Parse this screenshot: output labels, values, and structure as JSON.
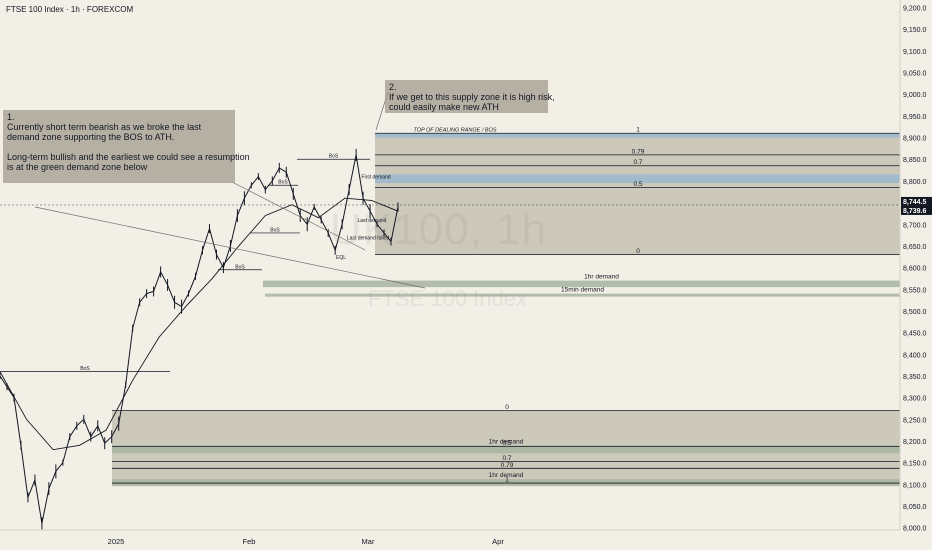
{
  "chart_title": "FTSE 100 Index · 1h · FOREXCOM",
  "watermark": {
    "symbol": "UK100, 1h",
    "name": "FTSE 100 Index"
  },
  "note1": {
    "number": "1.",
    "lines": [
      "Currently short term bearish as we broke the last",
      "demand zone supporting the BOS to ATH.",
      "",
      "Long-term bullish and the earliest we could see a resumption",
      "is at the green demand zone below"
    ]
  },
  "note2": {
    "number": "2.",
    "lines": [
      "If we get to this supply zone it is high risk,",
      "could easily make new ATH"
    ]
  },
  "price_labels": {
    "last": "8,744.5",
    "prev": "8,739.6",
    "last_color": "#131722"
  },
  "colors": {
    "fib_zone": "#b3ad9d",
    "demand_zone": "#a7b5a0",
    "blue_zone": "#9ab9cf",
    "candle": "#131722",
    "ema": "#131722"
  },
  "chart_data": {
    "type": "line",
    "x_ticks": [
      "2025",
      "Feb",
      "Mar",
      "Apr"
    ],
    "y_ticks": [
      "9,200.0",
      "9,150.0",
      "9,100.0",
      "9,050.0",
      "9,000.0",
      "8,950.0",
      "8,900.0",
      "8,850.0",
      "8,800.0",
      "8,750.0",
      "8,700.0",
      "8,650.0",
      "8,600.0",
      "8,550.0",
      "8,500.0",
      "8,450.0",
      "8,400.0",
      "8,350.0",
      "8,300.0",
      "8,250.0",
      "8,200.0",
      "8,150.0",
      "8,100.0",
      "8,050.0",
      "8,000.0"
    ],
    "ylim": [
      7985,
      9210
    ],
    "price_series": [
      {
        "t": "Dec 17",
        "price": 8350
      },
      {
        "t": "Dec 18",
        "price": 8325
      },
      {
        "t": "Dec 19",
        "price": 8300
      },
      {
        "t": "Dec 20",
        "price": 8190
      },
      {
        "t": "Dec 23",
        "price": 8070
      },
      {
        "t": "Dec 24",
        "price": 8110
      },
      {
        "t": "Dec 27",
        "price": 8010
      },
      {
        "t": "Dec 30",
        "price": 8090
      },
      {
        "t": "Dec 31",
        "price": 8130
      },
      {
        "t": "Jan 2",
        "price": 8150
      },
      {
        "t": "Jan 3",
        "price": 8210
      },
      {
        "t": "Jan 6",
        "price": 8235
      },
      {
        "t": "Jan 7",
        "price": 8250
      },
      {
        "t": "Jan 8",
        "price": 8210
      },
      {
        "t": "Jan 9",
        "price": 8235
      },
      {
        "t": "Jan 10",
        "price": 8195
      },
      {
        "t": "Jan 13",
        "price": 8210
      },
      {
        "t": "Jan 14",
        "price": 8240
      },
      {
        "t": "Jan 15",
        "price": 8330
      },
      {
        "t": "Jan 16",
        "price": 8460
      },
      {
        "t": "Jan 17",
        "price": 8520
      },
      {
        "t": "Jan 20",
        "price": 8540
      },
      {
        "t": "Jan 21",
        "price": 8545
      },
      {
        "t": "Jan 22",
        "price": 8590
      },
      {
        "t": "Jan 23",
        "price": 8560
      },
      {
        "t": "Jan 24",
        "price": 8520
      },
      {
        "t": "Jan 27",
        "price": 8510
      },
      {
        "t": "Jan 28",
        "price": 8540
      },
      {
        "t": "Jan 29",
        "price": 8580
      },
      {
        "t": "Jan 30",
        "price": 8640
      },
      {
        "t": "Jan 31",
        "price": 8690
      },
      {
        "t": "Feb 3",
        "price": 8630
      },
      {
        "t": "Feb 4",
        "price": 8600
      },
      {
        "t": "Feb 5",
        "price": 8650
      },
      {
        "t": "Feb 6",
        "price": 8720
      },
      {
        "t": "Feb 7",
        "price": 8760
      },
      {
        "t": "Feb 10",
        "price": 8790
      },
      {
        "t": "Feb 11",
        "price": 8810
      },
      {
        "t": "Feb 12",
        "price": 8780
      },
      {
        "t": "Feb 13",
        "price": 8800
      },
      {
        "t": "Feb 14",
        "price": 8830
      },
      {
        "t": "Feb 17",
        "price": 8820
      },
      {
        "t": "Feb 18",
        "price": 8770
      },
      {
        "t": "Feb 19",
        "price": 8720
      },
      {
        "t": "Feb 20",
        "price": 8700
      },
      {
        "t": "Feb 21",
        "price": 8740
      },
      {
        "t": "Feb 24",
        "price": 8710
      },
      {
        "t": "Feb 25",
        "price": 8680
      },
      {
        "t": "Feb 26",
        "price": 8640
      },
      {
        "t": "Feb 27",
        "price": 8700
      },
      {
        "t": "Feb 28",
        "price": 8780
      },
      {
        "t": "Mar 3",
        "price": 8860
      },
      {
        "t": "Mar 4",
        "price": 8760
      },
      {
        "t": "Mar 5",
        "price": 8730
      },
      {
        "t": "Mar 6",
        "price": 8700
      },
      {
        "t": "Mar 7",
        "price": 8680
      },
      {
        "t": "Mar 10",
        "price": 8660
      },
      {
        "t": "Mar 11",
        "price": 8740
      }
    ],
    "ema_series": [
      {
        "t": "Dec 17",
        "value": 8360
      },
      {
        "t": "Dec 27",
        "value": 8250
      },
      {
        "t": "Jan 3",
        "value": 8180
      },
      {
        "t": "Jan 10",
        "value": 8190
      },
      {
        "t": "Jan 15",
        "value": 8225
      },
      {
        "t": "Jan 20",
        "value": 8340
      },
      {
        "t": "Jan 24",
        "value": 8440
      },
      {
        "t": "Jan 29",
        "value": 8510
      },
      {
        "t": "Feb 3",
        "value": 8575
      },
      {
        "t": "Feb 7",
        "value": 8650
      },
      {
        "t": "Feb 13",
        "value": 8720
      },
      {
        "t": "Feb 19",
        "value": 8745
      },
      {
        "t": "Feb 25",
        "value": 8715
      },
      {
        "t": "Mar 3",
        "value": 8760
      },
      {
        "t": "Mar 7",
        "value": 8755
      },
      {
        "t": "Mar 11",
        "value": 8730
      }
    ],
    "fib_upper": [
      {
        "level": "1",
        "price": 8910
      },
      {
        "level": "0.79",
        "price": 8860
      },
      {
        "level": "0.7",
        "price": 8835
      },
      {
        "level": "0.5",
        "price": 8785
      },
      {
        "level": "0",
        "price": 8630
      }
    ],
    "fib_upper_title": "TOP OF DEALING RANGE / BOS",
    "fib_lower": [
      {
        "level": "0",
        "price": 8270
      },
      {
        "level": "0.5",
        "price": 8187
      },
      {
        "level": "0.7",
        "price": 8153
      },
      {
        "level": "0.79",
        "price": 8137
      },
      {
        "level": "1",
        "price": 8103
      }
    ],
    "demand_zones": [
      {
        "label": "1hr demand",
        "top": 8570,
        "bottom": 8555
      },
      {
        "label": "15min demand",
        "top": 8540,
        "bottom": 8533
      },
      {
        "label": "1hr demand",
        "top": 8190,
        "bottom": 8172
      },
      {
        "label": "1hr demand",
        "top": 8112,
        "bottom": 8096
      }
    ],
    "supply_zones": [
      {
        "top": 8910,
        "bottom": 8900
      },
      {
        "top": 8815,
        "bottom": 8795
      }
    ],
    "horizontal_lines": [
      {
        "label": "BoS",
        "price": 8360
      },
      {
        "label": "BoS",
        "price": 8595
      },
      {
        "label": "BoS",
        "price": 8680
      },
      {
        "label": "BoS",
        "price": 8790
      },
      {
        "label": "BoS",
        "price": 8850
      }
    ],
    "annotations": [
      "First demand",
      "Last demand",
      "Last demand failed",
      "EQL"
    ],
    "current_price": 8744.5
  }
}
